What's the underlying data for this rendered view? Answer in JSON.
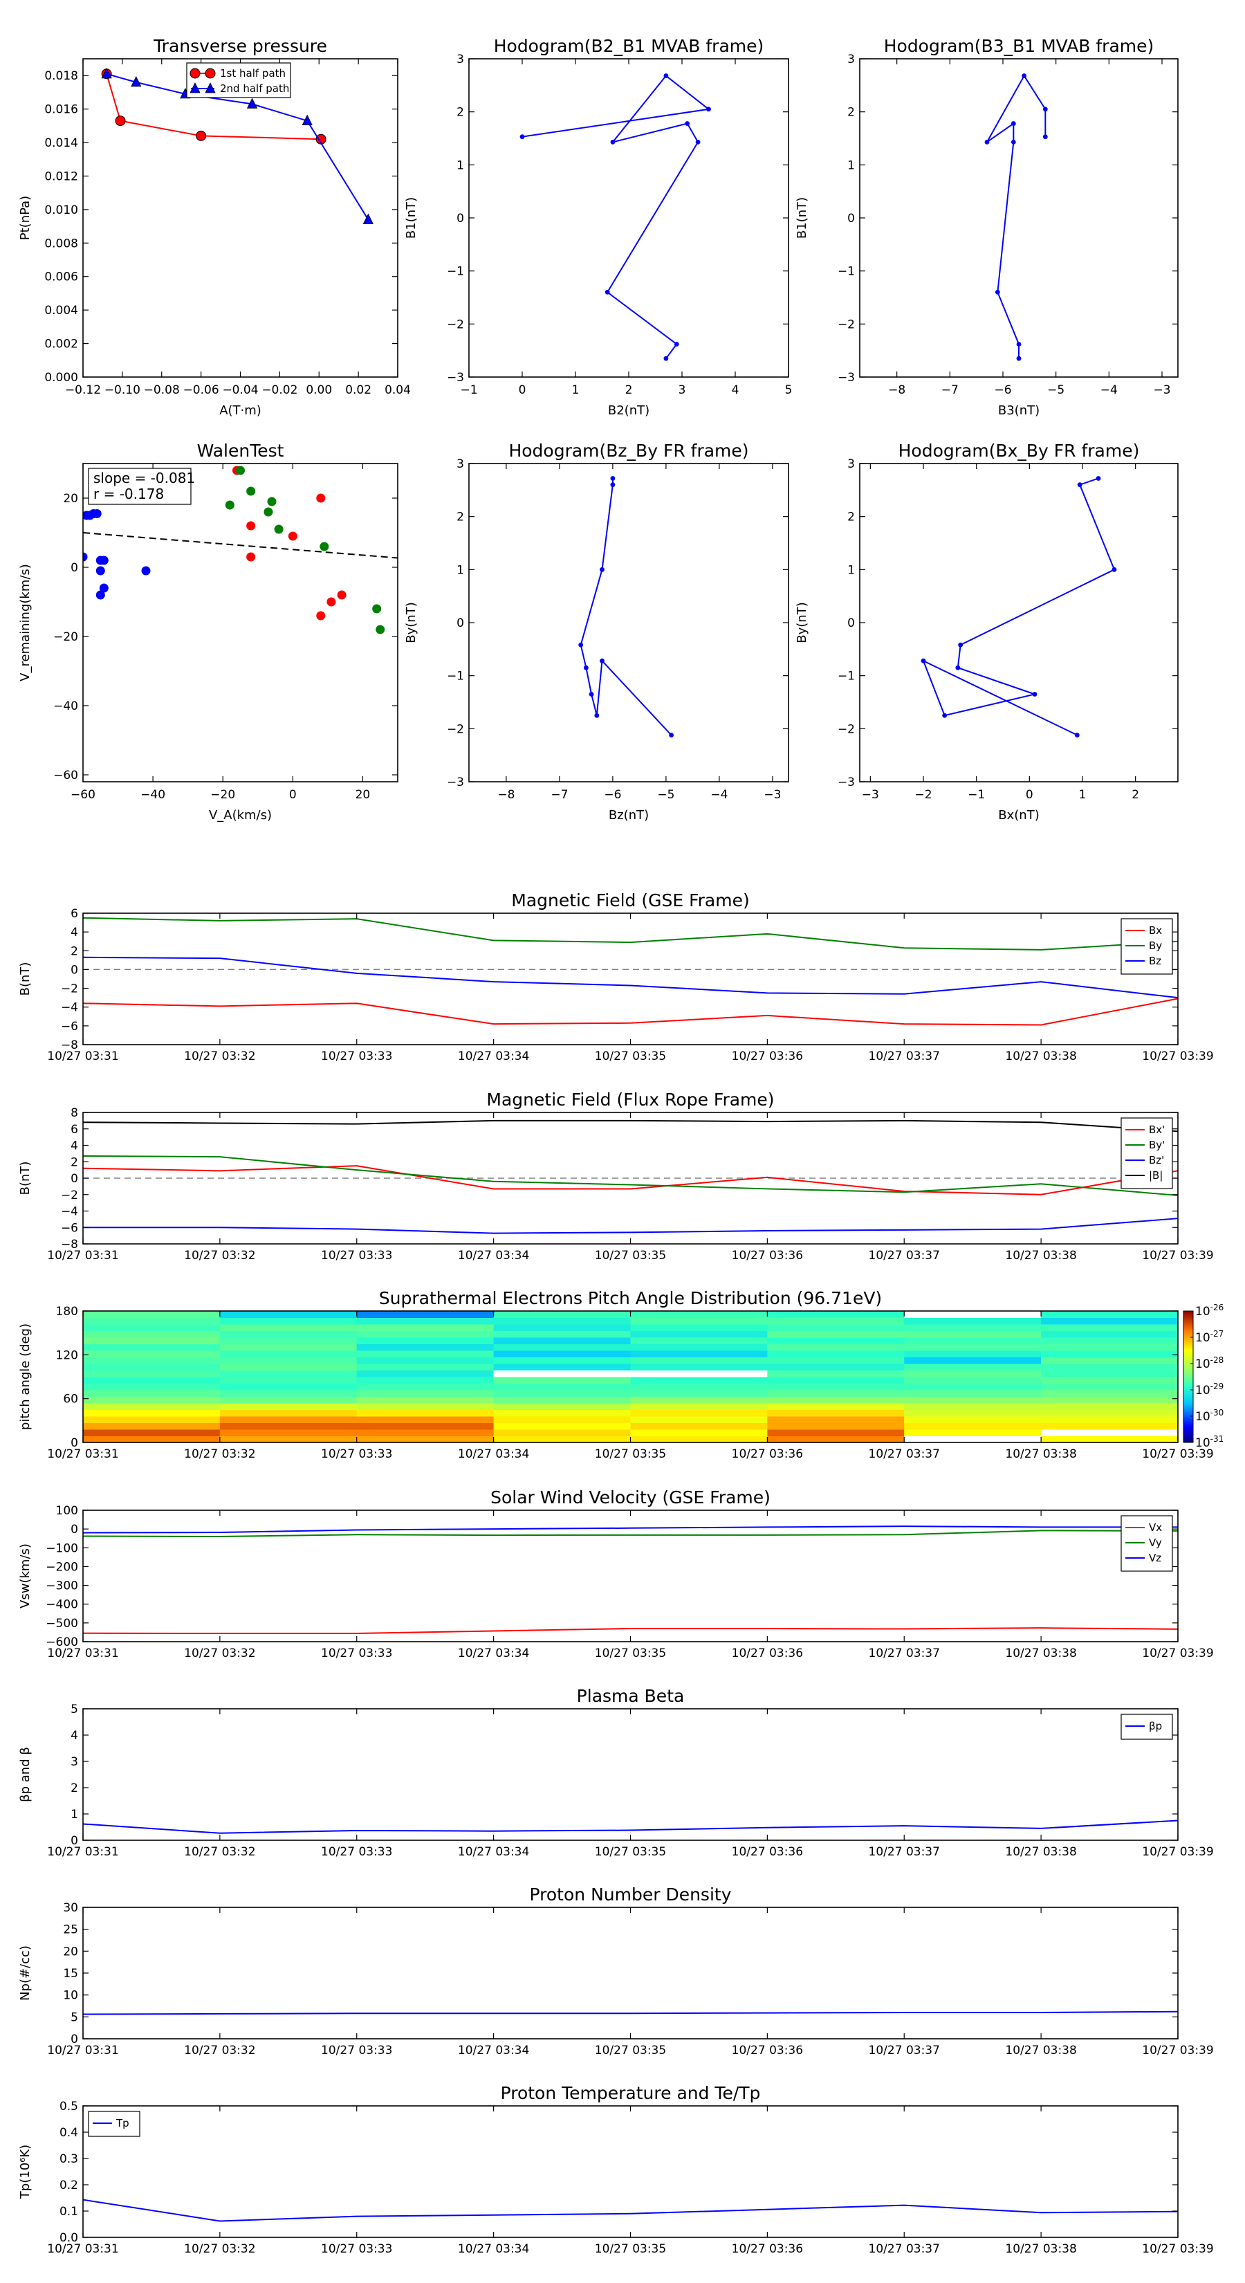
{
  "figure": {
    "background": "#ffffff",
    "time_tick_labels": [
      "10/27 03:31",
      "10/27 03:32",
      "10/27 03:33",
      "10/27 03:34",
      "10/27 03:35",
      "10/27 03:36",
      "10/27 03:37",
      "10/27 03:38",
      "10/27 03:39"
    ]
  },
  "chart_data": [
    {
      "id": "transverse-pressure",
      "type": "line",
      "title": "Transverse pressure",
      "xlabel": "A(T·m)",
      "ylabel": "Pt(nPa)",
      "xlim": [
        -0.12,
        0.04
      ],
      "ylim": [
        0.0,
        0.019
      ],
      "xticks": [
        -0.12,
        -0.1,
        -0.08,
        -0.06,
        -0.04,
        -0.02,
        0.0,
        0.02,
        0.04
      ],
      "xtick_labels": [
        "−0.12",
        "−0.10",
        "−0.08",
        "−0.06",
        "−0.04",
        "−0.02",
        "0.00",
        "0.02",
        "0.04"
      ],
      "yticks": [
        0.0,
        0.002,
        0.004,
        0.006,
        0.008,
        0.01,
        0.012,
        0.014,
        0.016,
        0.018
      ],
      "ytick_labels": [
        "0.000",
        "0.002",
        "0.004",
        "0.006",
        "0.008",
        "0.010",
        "0.012",
        "0.014",
        "0.016",
        "0.018"
      ],
      "legend_position": "top-center",
      "series": [
        {
          "name": "1st half path",
          "color": "#ff0000",
          "marker": "circle",
          "x": [
            -0.108,
            -0.101,
            -0.06,
            0.001
          ],
          "y": [
            0.0181,
            0.0153,
            0.0144,
            0.0142
          ]
        },
        {
          "name": "2nd half path",
          "color": "#0000ff",
          "marker": "triangle",
          "x": [
            -0.108,
            -0.093,
            -0.068,
            -0.034,
            -0.006,
            0.025
          ],
          "y": [
            0.0181,
            0.0176,
            0.0169,
            0.0163,
            0.0153,
            0.0094
          ]
        }
      ]
    },
    {
      "id": "hodogram-b2-b1",
      "type": "line",
      "title": "Hodogram(B2_B1 MVAB frame)",
      "xlabel": "B2(nT)",
      "ylabel": "B1(nT)",
      "xlim": [
        -1,
        5
      ],
      "ylim": [
        -3,
        3
      ],
      "xticks": [
        -1,
        0,
        1,
        2,
        3,
        4,
        5
      ],
      "xtick_labels": [
        "−1",
        "0",
        "1",
        "2",
        "3",
        "4",
        "5"
      ],
      "yticks": [
        -3,
        -2,
        -1,
        0,
        1,
        2,
        3
      ],
      "ytick_labels": [
        "−3",
        "−2",
        "−1",
        "0",
        "1",
        "2",
        "3"
      ],
      "series": [
        {
          "color": "#0000ff",
          "marker": "dot",
          "x": [
            0.0,
            3.5,
            2.7,
            1.7,
            3.1,
            3.3,
            1.6,
            2.9,
            2.7
          ],
          "y": [
            1.53,
            2.05,
            2.68,
            1.43,
            1.78,
            1.43,
            -1.4,
            -2.38,
            -2.65
          ]
        }
      ]
    },
    {
      "id": "hodogram-b3-b1",
      "type": "line",
      "title": "Hodogram(B3_B1 MVAB frame)",
      "xlabel": "B3(nT)",
      "ylabel": "B1(nT)",
      "xlim": [
        -8.7,
        -2.7
      ],
      "ylim": [
        -3,
        3
      ],
      "xticks": [
        -8,
        -7,
        -6,
        -5,
        -4,
        -3
      ],
      "xtick_labels": [
        "−8",
        "−7",
        "−6",
        "−5",
        "−4",
        "−3"
      ],
      "yticks": [
        -3,
        -2,
        -1,
        0,
        1,
        2,
        3
      ],
      "ytick_labels": [
        "−3",
        "−2",
        "−1",
        "0",
        "1",
        "2",
        "3"
      ],
      "series": [
        {
          "color": "#0000ff",
          "marker": "dot",
          "x": [
            -5.2,
            -5.2,
            -5.6,
            -6.3,
            -5.8,
            -5.8,
            -6.1,
            -5.7,
            -5.7
          ],
          "y": [
            1.53,
            2.05,
            2.68,
            1.43,
            1.78,
            1.43,
            -1.4,
            -2.38,
            -2.65
          ]
        }
      ]
    },
    {
      "id": "walen-test",
      "type": "scatter",
      "title": "WalenTest",
      "xlabel": "V_A(km/s)",
      "ylabel": "V_remaining(km/s)",
      "xlim": [
        -60,
        30
      ],
      "ylim": [
        -62,
        30
      ],
      "xticks": [
        -60,
        -40,
        -20,
        0,
        20
      ],
      "xtick_labels": [
        "−60",
        "−40",
        "−20",
        "0",
        "20"
      ],
      "yticks": [
        -60,
        -40,
        -20,
        0,
        20
      ],
      "ytick_labels": [
        "−60",
        "−40",
        "−20",
        "0",
        "20"
      ],
      "annotation": [
        "slope = -0.081",
        "r = -0.178"
      ],
      "fit_line": {
        "x": [
          -60,
          30
        ],
        "y": [
          10,
          2.7
        ]
      },
      "series": [
        {
          "color": "#0000ff",
          "x": [
            -60,
            -59,
            -58,
            -57,
            -56,
            -55,
            -55,
            -55,
            -54,
            -54,
            -42
          ],
          "y": [
            3,
            15,
            15,
            15.5,
            15.5,
            -8,
            2,
            -1,
            -6,
            2,
            -1
          ]
        },
        {
          "color": "#ff0000",
          "x": [
            -16,
            -12,
            -12,
            0,
            8,
            8,
            11,
            14
          ],
          "y": [
            28,
            12,
            3,
            9,
            20,
            -14,
            -10,
            -8
          ]
        },
        {
          "color": "#008000",
          "x": [
            -18,
            -15,
            -12,
            -7,
            -6,
            -4,
            9,
            24,
            25
          ],
          "y": [
            18,
            28,
            22,
            16,
            19,
            11,
            6,
            -12,
            -18
          ]
        }
      ]
    },
    {
      "id": "hodogram-bz-by",
      "type": "line",
      "title": "Hodogram(Bz_By FR frame)",
      "xlabel": "Bz(nT)",
      "ylabel": "By(nT)",
      "xlim": [
        -8.7,
        -2.7
      ],
      "ylim": [
        -3,
        3
      ],
      "xticks": [
        -8,
        -7,
        -6,
        -5,
        -4,
        -3
      ],
      "xtick_labels": [
        "−8",
        "−7",
        "−6",
        "−5",
        "−4",
        "−3"
      ],
      "yticks": [
        -3,
        -2,
        -1,
        0,
        1,
        2,
        3
      ],
      "ytick_labels": [
        "−3",
        "−2",
        "−1",
        "0",
        "1",
        "2",
        "3"
      ],
      "series": [
        {
          "color": "#0000ff",
          "marker": "dot",
          "x": [
            -6.0,
            -6.0,
            -6.2,
            -6.6,
            -6.5,
            -6.4,
            -6.3,
            -6.2,
            -4.9
          ],
          "y": [
            2.72,
            2.6,
            1.0,
            -0.42,
            -0.85,
            -1.35,
            -1.75,
            -0.72,
            -2.12
          ]
        }
      ]
    },
    {
      "id": "hodogram-bx-by",
      "type": "line",
      "title": "Hodogram(Bx_By FR frame)",
      "xlabel": "Bx(nT)",
      "ylabel": "By(nT)",
      "xlim": [
        -3.2,
        2.8
      ],
      "ylim": [
        -3,
        3
      ],
      "xticks": [
        -3,
        -2,
        -1,
        0,
        1,
        2
      ],
      "xtick_labels": [
        "−3",
        "−2",
        "−1",
        "0",
        "1",
        "2"
      ],
      "yticks": [
        -3,
        -2,
        -1,
        0,
        1,
        2,
        3
      ],
      "ytick_labels": [
        "−3",
        "−2",
        "−1",
        "0",
        "1",
        "2",
        "3"
      ],
      "series": [
        {
          "color": "#0000ff",
          "marker": "dot",
          "x": [
            1.3,
            0.95,
            1.6,
            -1.3,
            -1.35,
            0.1,
            -1.6,
            -2.0,
            0.9
          ],
          "y": [
            2.72,
            2.6,
            1.0,
            -0.42,
            -0.85,
            -1.35,
            -1.75,
            -0.72,
            -2.12
          ]
        }
      ]
    },
    {
      "id": "mag-gse",
      "type": "line",
      "title": "Magnetic Field (GSE Frame)",
      "ylabel": "B(nT)",
      "ylim": [
        -8,
        6
      ],
      "yticks": [
        -8,
        -6,
        -4,
        -2,
        0,
        2,
        4,
        6
      ],
      "ytick_labels": [
        "−8",
        "−6",
        "−4",
        "−2",
        "0",
        "2",
        "4",
        "6"
      ],
      "zero_line": true,
      "legend_position": "top-right",
      "series": [
        {
          "name": "Bx",
          "color": "#ff0000",
          "values": [
            -3.6,
            -3.9,
            -3.6,
            -5.8,
            -5.7,
            -4.9,
            -5.8,
            -5.9,
            -3.1
          ]
        },
        {
          "name": "By",
          "color": "#008000",
          "values": [
            5.5,
            5.2,
            5.4,
            3.1,
            2.9,
            3.8,
            2.3,
            2.1,
            3.0
          ]
        },
        {
          "name": "Bz",
          "color": "#0000ff",
          "values": [
            1.3,
            1.2,
            -0.4,
            -1.3,
            -1.7,
            -2.5,
            -2.6,
            -1.3,
            -3.0
          ]
        }
      ]
    },
    {
      "id": "mag-fr",
      "type": "line",
      "title": "Magnetic Field (Flux Rope Frame)",
      "ylabel": "B(nT)",
      "ylim": [
        -8,
        8
      ],
      "yticks": [
        -8,
        -6,
        -4,
        -2,
        0,
        2,
        4,
        6,
        8
      ],
      "ytick_labels": [
        "−8",
        "−6",
        "−4",
        "−2",
        "0",
        "2",
        "4",
        "6",
        "8"
      ],
      "zero_line": true,
      "legend_position": "top-right",
      "series": [
        {
          "name": "Bx'",
          "color": "#ff0000",
          "values": [
            1.2,
            0.9,
            1.5,
            -1.3,
            -1.3,
            0.1,
            -1.6,
            -2.0,
            0.9
          ]
        },
        {
          "name": "By'",
          "color": "#008000",
          "values": [
            2.7,
            2.6,
            1.0,
            -0.4,
            -0.8,
            -1.3,
            -1.7,
            -0.7,
            -2.1
          ]
        },
        {
          "name": "Bz'",
          "color": "#0000ff",
          "values": [
            -6.0,
            -6.0,
            -6.2,
            -6.7,
            -6.6,
            -6.4,
            -6.3,
            -6.2,
            -4.9
          ]
        },
        {
          "name": "|B|",
          "color": "#000000",
          "values": [
            6.8,
            6.7,
            6.6,
            7.0,
            7.0,
            6.9,
            7.0,
            6.8,
            5.7
          ]
        }
      ]
    },
    {
      "id": "pad",
      "type": "heatmap",
      "title": "Suprathermal Electrons Pitch Angle Distribution (96.71eV)",
      "ylabel": "pitch angle (deg)",
      "ylim": [
        0,
        180
      ],
      "yticks": [
        0,
        60,
        120,
        180
      ],
      "ytick_labels": [
        "0",
        "60",
        "120",
        "180"
      ],
      "colorbar_ticks": [
        "-26",
        "-27",
        "-28",
        "-29",
        "-30",
        "-31"
      ],
      "colorbar_base": "10",
      "bin_edges": [
        0,
        9,
        18,
        27,
        36,
        45,
        54,
        63,
        72,
        81,
        90,
        99,
        108,
        117,
        126,
        135,
        144,
        153,
        162,
        171,
        180
      ],
      "values_log10": [
        [
          -26.8,
          -26.5,
          -27.0,
          -27.3,
          -27.5,
          -27.9,
          -28.4,
          -28.6,
          -28.8,
          -28.9,
          -28.7,
          -28.8,
          -28.7,
          -28.6,
          -28.8,
          -28.5,
          -28.6,
          -28.8,
          -28.7,
          -28.6
        ],
        [
          -27.0,
          -26.8,
          -26.6,
          -26.9,
          -27.3,
          -27.8,
          -28.5,
          -28.7,
          -28.9,
          -28.8,
          -28.8,
          -28.6,
          -28.7,
          -28.8,
          -28.6,
          -28.7,
          -28.8,
          -28.6,
          -28.9,
          -29.3
        ],
        [
          -27.0,
          -26.8,
          -26.6,
          -26.9,
          -27.4,
          -27.9,
          -28.3,
          -28.6,
          -28.8,
          -28.9,
          -29.1,
          -28.8,
          -29.0,
          -28.8,
          -29.2,
          -28.9,
          -28.7,
          -28.6,
          -29.0,
          -29.8
        ],
        [
          -27.4,
          -27.3,
          -27.5,
          -27.4,
          -27.6,
          -28.0,
          -28.5,
          -28.7,
          -28.8,
          -28.6,
          -30.5,
          -29.2,
          -28.9,
          -29.4,
          -29.0,
          -29.3,
          -28.8,
          -29.1,
          -29.0,
          -28.8
        ],
        [
          -27.4,
          -27.5,
          -27.3,
          -27.6,
          -27.4,
          -27.8,
          -28.3,
          -28.7,
          -28.8,
          -28.9,
          -30.5,
          -29.0,
          -28.8,
          -29.3,
          -29.0,
          -28.8,
          -29.1,
          -28.9,
          -28.7,
          -28.8
        ],
        [
          -26.8,
          -26.6,
          -27.0,
          -27.0,
          -27.3,
          -27.7,
          -28.3,
          -28.6,
          -28.8,
          -28.9,
          -28.7,
          -29.0,
          -28.8,
          -28.9,
          -28.7,
          -28.9,
          -28.6,
          -28.8,
          -28.7,
          -28.9
        ],
        [
          -30.5,
          -27.5,
          -27.4,
          -27.6,
          -27.8,
          -27.9,
          -28.3,
          -28.6,
          -28.8,
          -28.7,
          -28.6,
          -28.8,
          -29.4,
          -29.0,
          -28.7,
          -28.8,
          -28.6,
          -28.8,
          -29.0,
          -30.5
        ],
        [
          -27.5,
          -30.5,
          -27.4,
          -27.6,
          -27.8,
          -27.9,
          -28.3,
          -28.5,
          -28.7,
          -28.6,
          -28.8,
          -28.8,
          -28.6,
          -28.9,
          -28.7,
          -28.8,
          -29.0,
          -28.8,
          -29.3,
          -28.9
        ]
      ]
    },
    {
      "id": "sw-velocity",
      "type": "line",
      "title": "Solar Wind Velocity (GSE Frame)",
      "ylabel": "Vsw(km/s)",
      "ylim": [
        -600,
        100
      ],
      "yticks": [
        -600,
        -500,
        -400,
        -300,
        -200,
        -100,
        0,
        100
      ],
      "ytick_labels": [
        "−600",
        "−500",
        "−400",
        "−300",
        "−200",
        "−100",
        "0",
        "100"
      ],
      "legend_position": "top-right",
      "series": [
        {
          "name": "Vx",
          "color": "#ff0000",
          "values": [
            -555,
            -556,
            -556,
            -543,
            -530,
            -530,
            -532,
            -527,
            -533
          ]
        },
        {
          "name": "Vy",
          "color": "#008000",
          "values": [
            -38,
            -40,
            -30,
            -33,
            -32,
            -32,
            -30,
            -8,
            -10
          ]
        },
        {
          "name": "Vz",
          "color": "#0000ff",
          "values": [
            -20,
            -18,
            -5,
            0,
            5,
            10,
            15,
            10,
            10
          ]
        }
      ]
    },
    {
      "id": "plasma-beta",
      "type": "line",
      "title": "Plasma Beta",
      "ylabel": "βp and β",
      "ylim": [
        0,
        5
      ],
      "yticks": [
        0,
        1,
        2,
        3,
        4,
        5
      ],
      "ytick_labels": [
        "0",
        "1",
        "2",
        "3",
        "4",
        "5"
      ],
      "legend_position": "top-right",
      "series": [
        {
          "name": "βp",
          "color": "#0000ff",
          "values": [
            0.62,
            0.27,
            0.37,
            0.35,
            0.38,
            0.48,
            0.55,
            0.45,
            0.75
          ]
        }
      ]
    },
    {
      "id": "proton-density",
      "type": "line",
      "title": "Proton Number Density",
      "ylabel": "Np(#/cc)",
      "ylim": [
        0,
        30
      ],
      "yticks": [
        0,
        5,
        10,
        15,
        20,
        25,
        30
      ],
      "ytick_labels": [
        "0",
        "5",
        "10",
        "15",
        "20",
        "25",
        "30"
      ],
      "series": [
        {
          "color": "#0000ff",
          "values": [
            5.6,
            5.7,
            5.8,
            5.8,
            5.8,
            5.9,
            6.0,
            6.0,
            6.2
          ]
        }
      ]
    },
    {
      "id": "proton-temperature",
      "type": "line",
      "title": "Proton Temperature and Te/Tp",
      "ylabel": "Tp(10⁶K)",
      "ylim": [
        0,
        0.5
      ],
      "yticks": [
        0,
        0.1,
        0.2,
        0.3,
        0.4,
        0.5
      ],
      "ytick_labels": [
        "0.0",
        "0.1",
        "0.2",
        "0.3",
        "0.4",
        "0.5"
      ],
      "legend_position": "top-left",
      "series": [
        {
          "name": "Tp",
          "color": "#0000ff",
          "values": [
            0.143,
            0.062,
            0.08,
            0.085,
            0.09,
            0.106,
            0.122,
            0.094,
            0.098
          ]
        }
      ]
    }
  ]
}
